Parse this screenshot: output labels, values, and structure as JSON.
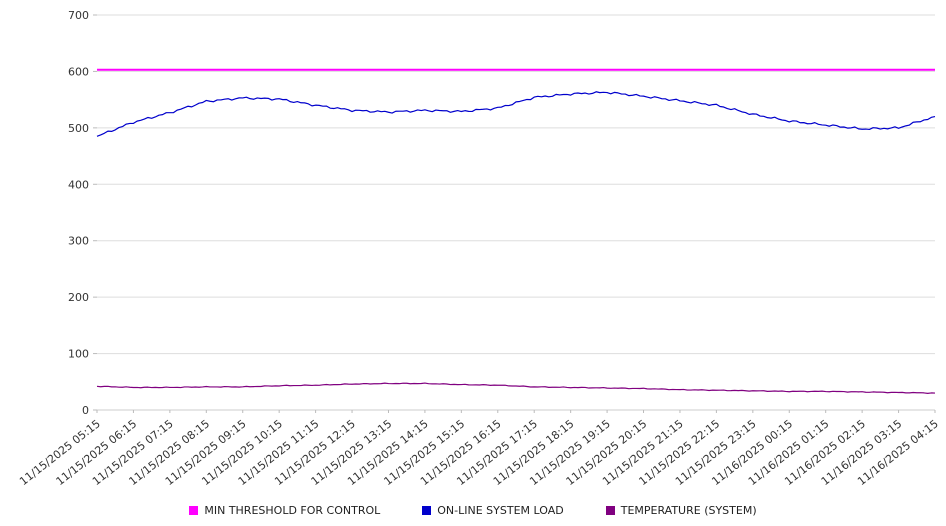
{
  "chart_data": {
    "type": "line",
    "title": "",
    "xlabel": "",
    "ylabel": "",
    "ylim": [
      0,
      700
    ],
    "y_ticks": [
      0,
      100,
      200,
      300,
      400,
      500,
      600,
      700
    ],
    "grid": true,
    "legend_position": "bottom",
    "x_tick_rotation_deg": -38,
    "categories": [
      "11/15/2025 05:15",
      "11/15/2025 06:15",
      "11/15/2025 07:15",
      "11/15/2025 08:15",
      "11/15/2025 09:15",
      "11/15/2025 10:15",
      "11/15/2025 11:15",
      "11/15/2025 12:15",
      "11/15/2025 13:15",
      "11/15/2025 14:15",
      "11/15/2025 15:15",
      "11/15/2025 16:15",
      "11/15/2025 17:15",
      "11/15/2025 18:15",
      "11/15/2025 19:15",
      "11/15/2025 20:15",
      "11/15/2025 21:15",
      "11/15/2025 22:15",
      "11/15/2025 23:15",
      "11/16/2025 00:15",
      "11/16/2025 01:15",
      "11/16/2025 02:15",
      "11/16/2025 03:15",
      "11/16/2025 04:15"
    ],
    "series": [
      {
        "name": "MIN THRESHOLD FOR CONTROL",
        "color": "#ff00ff",
        "values": [
          603,
          603,
          603,
          603,
          603,
          603,
          603,
          603,
          603,
          603,
          603,
          603,
          603,
          603,
          603,
          603,
          603,
          603,
          603,
          603,
          603,
          603,
          603,
          603
        ]
      },
      {
        "name": "ON-LINE SYSTEM LOAD",
        "color": "#0000cc",
        "values": [
          485,
          510,
          527,
          547,
          553,
          551,
          540,
          531,
          528,
          531,
          529,
          535,
          554,
          560,
          563,
          556,
          548,
          540,
          524,
          512,
          505,
          498,
          500,
          520
        ]
      },
      {
        "name": "TEMPERATURE (SYSTEM)",
        "color": "#800080",
        "values": [
          42,
          40,
          40,
          41,
          41,
          43,
          44,
          46,
          47,
          47,
          45,
          44,
          41,
          40,
          39,
          38,
          36,
          35,
          34,
          33,
          33,
          32,
          31,
          30
        ]
      }
    ]
  }
}
